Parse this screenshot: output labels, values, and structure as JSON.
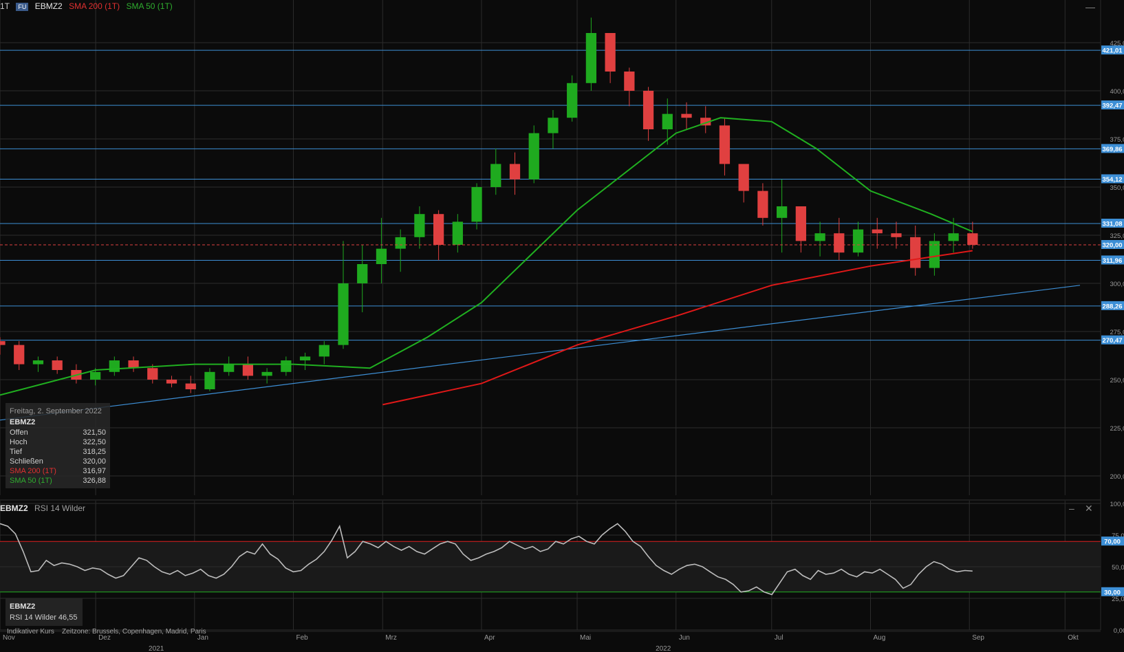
{
  "header": {
    "interval": "1T",
    "badge": "FU",
    "symbol": "EBMZ2",
    "sma200_label": "SMA 200 (1T)",
    "sma50_label": "SMA 50 (1T)"
  },
  "colors": {
    "up": "#1faa1f",
    "down": "#e04040",
    "sma200": "#e01818",
    "sma50": "#20b020",
    "hline": "#3d8fd6",
    "trend": "#3d8fd6",
    "grid": "#2c2c2c",
    "axis_text": "#9a9a9a",
    "label_bg": "#3d8fd6",
    "last_bg": "#3d8fd6",
    "rsi": "#bdbdbd",
    "rsi_upper": "#e02020",
    "rsi_lower": "#20b020"
  },
  "info_box": {
    "date": "Freitag, 2. September 2022",
    "symbol": "EBMZ2",
    "rows": [
      {
        "label": "Offen",
        "value": "321,50",
        "cls": ""
      },
      {
        "label": "Hoch",
        "value": "322,50",
        "cls": ""
      },
      {
        "label": "Tief",
        "value": "318,25",
        "cls": ""
      },
      {
        "label": "Schließen",
        "value": "320,00",
        "cls": ""
      },
      {
        "label": "SMA 200 (1T)",
        "value": "316,97",
        "cls": "red"
      },
      {
        "label": "SMA 50 (1T)",
        "value": "326,88",
        "cls": "green"
      }
    ]
  },
  "rsi_header": {
    "symbol": "EBMZ2",
    "name": "RSI 14 Wilder"
  },
  "rsi_box": {
    "symbol": "EBMZ2",
    "value_text": "RSI 14 Wilder 46,55"
  },
  "footnote": {
    "indicative": "Indikativer Kurs",
    "timezone": "Zeitzone: Brussels, Copenhagen, Madrid, Paris"
  },
  "chart_data": [
    {
      "type": "candlestick",
      "symbol": "EBMZ2",
      "ylim": [
        190,
        440
      ],
      "y_ticks": [
        200,
        225,
        250,
        275,
        300,
        325,
        350,
        375,
        400,
        425
      ],
      "y_tick_labels": [
        "200,00",
        "225,00",
        "250,00",
        "275,00",
        "300,00",
        "325,00",
        "350,00",
        "375,00",
        "400,00",
        "425,00"
      ],
      "x_month_labels": [
        "Nov",
        "Dez",
        "Jan",
        "Feb",
        "Mrz",
        "Apr",
        "Mai",
        "Jun",
        "Jul",
        "Aug",
        "Sep",
        "Okt"
      ],
      "x_year_labels": [
        "2021",
        "2022"
      ],
      "horizontal_levels": [
        421.01,
        392.47,
        369.86,
        354.12,
        331.08,
        311.96,
        288.26,
        270.47
      ],
      "horizontal_level_labels": [
        "421,01",
        "392,47",
        "369,86",
        "354,12",
        "331,08",
        "311,96",
        "288,26",
        "270,47"
      ],
      "last_price": 320.0,
      "last_price_label": "320,00",
      "trendline": {
        "from": [
          "2021-11-01",
          229
        ],
        "to": [
          "2022-10-10",
          299
        ]
      },
      "candles_ohlc_weekly_approx": [
        [
          270,
          272,
          263,
          268
        ],
        [
          268,
          270,
          255,
          258
        ],
        [
          258,
          262,
          254,
          260
        ],
        [
          260,
          262,
          253,
          255
        ],
        [
          255,
          258,
          248,
          250
        ],
        [
          250,
          256,
          247,
          254
        ],
        [
          254,
          262,
          252,
          260
        ],
        [
          260,
          262,
          254,
          256
        ],
        [
          256,
          258,
          248,
          250
        ],
        [
          250,
          252,
          246,
          248
        ],
        [
          248,
          252,
          243,
          245
        ],
        [
          245,
          256,
          244,
          254
        ],
        [
          254,
          262,
          252,
          258
        ],
        [
          258,
          262,
          250,
          252
        ],
        [
          252,
          256,
          248,
          254
        ],
        [
          254,
          262,
          252,
          260
        ],
        [
          260,
          264,
          255,
          262
        ],
        [
          262,
          270,
          258,
          268
        ],
        [
          268,
          322,
          266,
          300
        ],
        [
          300,
          320,
          285,
          310
        ],
        [
          310,
          334,
          300,
          318
        ],
        [
          318,
          328,
          306,
          324
        ],
        [
          324,
          340,
          318,
          336
        ],
        [
          336,
          338,
          312,
          320
        ],
        [
          320,
          336,
          316,
          332
        ],
        [
          332,
          352,
          328,
          350
        ],
        [
          350,
          370,
          346,
          362
        ],
        [
          362,
          368,
          346,
          354
        ],
        [
          354,
          382,
          352,
          378
        ],
        [
          378,
          390,
          370,
          386
        ],
        [
          386,
          408,
          384,
          404
        ],
        [
          404,
          438,
          400,
          430
        ],
        [
          430,
          426,
          404,
          410
        ],
        [
          410,
          412,
          392,
          400
        ],
        [
          400,
          402,
          374,
          380
        ],
        [
          380,
          396,
          372,
          388
        ],
        [
          388,
          394,
          380,
          386
        ],
        [
          386,
          392,
          378,
          382
        ],
        [
          382,
          386,
          356,
          362
        ],
        [
          362,
          358,
          342,
          348
        ],
        [
          348,
          352,
          330,
          334
        ],
        [
          334,
          354,
          316,
          340
        ],
        [
          340,
          336,
          316,
          322
        ],
        [
          322,
          332,
          314,
          326
        ],
        [
          326,
          334,
          312,
          316
        ],
        [
          316,
          332,
          314,
          328
        ],
        [
          328,
          334,
          318,
          326
        ],
        [
          326,
          332,
          318,
          324
        ],
        [
          324,
          330,
          304,
          308
        ],
        [
          308,
          326,
          304,
          322
        ],
        [
          322,
          334,
          316,
          326
        ],
        [
          326,
          332,
          318,
          320
        ]
      ],
      "sma50_approx": [
        [
          "2021-11-01",
          242
        ],
        [
          "2021-12-01",
          255
        ],
        [
          "2022-01-01",
          258
        ],
        [
          "2022-02-01",
          258
        ],
        [
          "2022-02-25",
          256
        ],
        [
          "2022-03-15",
          272
        ],
        [
          "2022-04-01",
          290
        ],
        [
          "2022-05-01",
          338
        ],
        [
          "2022-06-01",
          378
        ],
        [
          "2022-06-15",
          386
        ],
        [
          "2022-07-01",
          384
        ],
        [
          "2022-07-15",
          370
        ],
        [
          "2022-08-01",
          348
        ],
        [
          "2022-08-20",
          336
        ],
        [
          "2022-09-02",
          326.88
        ]
      ],
      "sma200_approx": [
        [
          "2022-03-01",
          237
        ],
        [
          "2022-04-01",
          248
        ],
        [
          "2022-05-01",
          268
        ],
        [
          "2022-06-01",
          283
        ],
        [
          "2022-07-01",
          299
        ],
        [
          "2022-08-01",
          309
        ],
        [
          "2022-09-02",
          316.97
        ]
      ]
    },
    {
      "type": "line",
      "name": "RSI 14 Wilder",
      "ylim": [
        0,
        100
      ],
      "y_ticks": [
        0,
        25,
        50,
        75,
        100
      ],
      "y_tick_labels": [
        "0,00",
        "25,00",
        "50,00",
        "75,00",
        "100,00"
      ],
      "levels": [
        70,
        30
      ],
      "level_labels": [
        "70,00",
        "30,00"
      ],
      "values_approx": [
        84,
        82,
        76,
        62,
        46,
        47,
        55,
        51,
        53,
        52,
        50,
        47,
        49,
        48,
        44,
        41,
        43,
        50,
        57,
        55,
        50,
        46,
        44,
        47,
        43,
        45,
        48,
        43,
        41,
        44,
        50,
        58,
        62,
        60,
        68,
        60,
        56,
        49,
        46,
        47,
        52,
        56,
        62,
        71,
        82,
        57,
        62,
        70,
        68,
        65,
        70,
        66,
        63,
        66,
        62,
        60,
        64,
        68,
        70,
        68,
        60,
        55,
        57,
        60,
        62,
        65,
        70,
        67,
        64,
        66,
        62,
        64,
        70,
        68,
        72,
        74,
        70,
        68,
        75,
        80,
        84,
        78,
        70,
        66,
        58,
        51,
        47,
        44,
        48,
        51,
        52,
        50,
        46,
        42,
        40,
        36,
        30,
        31,
        34,
        30,
        28,
        37,
        46,
        48,
        43,
        40,
        47,
        44,
        45,
        48,
        44,
        42,
        46,
        45,
        48,
        44,
        40,
        33,
        36,
        44,
        50,
        54,
        52,
        48,
        46,
        47,
        46.55
      ],
      "last_value_label": "46,55"
    }
  ]
}
